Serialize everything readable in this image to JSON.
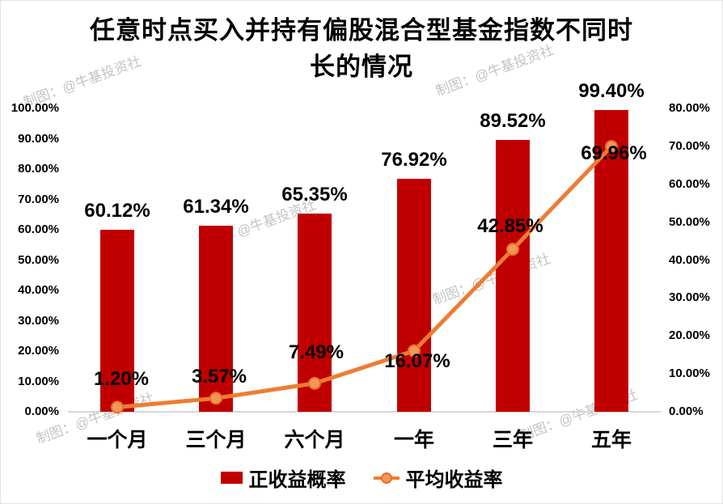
{
  "title": {
    "line1": "任意时点买入并持有偏股混合型基金指数不同时",
    "line2": "长的情况"
  },
  "colors": {
    "bar": "#c00000",
    "line": "#ed7d31",
    "marker_fill": "#f2975a",
    "marker_stroke": "#e8702a",
    "axis_line": "#d6d6d6",
    "text": "#000000",
    "watermark": "#919191"
  },
  "watermarks": {
    "full": "制图：@牛基投资社",
    "partial": "@牛基投资社"
  },
  "chart_data": {
    "type": "bar",
    "subtype": "combo-bar-line",
    "title": "任意时点买入并持有偏股混合型基金指数不同时长的情况",
    "categories": [
      "一个月",
      "三个月",
      "六个月",
      "一年",
      "三年",
      "五年"
    ],
    "series": [
      {
        "name": "正收益概率",
        "type": "bar",
        "axis": "left",
        "color": "#c00000",
        "values": [
          60.12,
          61.34,
          65.35,
          76.92,
          89.52,
          99.4
        ],
        "labels": [
          "60.12%",
          "61.34%",
          "65.35%",
          "76.92%",
          "89.52%",
          "99.40%"
        ]
      },
      {
        "name": "平均收益率",
        "type": "line",
        "axis": "right",
        "color": "#ed7d31",
        "values": [
          1.2,
          3.57,
          7.49,
          16.07,
          42.85,
          69.96
        ],
        "labels": [
          "1.20%",
          "3.57%",
          "7.49%",
          "16.07%",
          "42.85%",
          "69.96%"
        ],
        "label_offsets": [
          {
            "dx": 5,
            "dy": -34
          },
          {
            "dx": 4,
            "dy": -26
          },
          {
            "dx": 2,
            "dy": -38
          },
          {
            "dx": 4,
            "dy": 13
          },
          {
            "dx": -3,
            "dy": -28
          },
          {
            "dx": 3,
            "dy": 9
          }
        ]
      }
    ],
    "left_axis": {
      "min": 0,
      "max": 100,
      "step": 10,
      "labels": [
        "0.00%",
        "10.00%",
        "20.00%",
        "30.00%",
        "40.00%",
        "50.00%",
        "60.00%",
        "70.00%",
        "80.00%",
        "90.00%",
        "100.00%"
      ]
    },
    "right_axis": {
      "min": 0,
      "max": 80,
      "step": 10,
      "labels": [
        "0.00%",
        "10.00%",
        "20.00%",
        "30.00%",
        "40.00%",
        "50.00%",
        "60.00%",
        "70.00%",
        "80.00%"
      ]
    },
    "grid": false,
    "legend_position": "bottom",
    "legend": [
      {
        "label": "正收益概率",
        "marker": "bar"
      },
      {
        "label": "平均收益率",
        "marker": "line"
      }
    ]
  }
}
